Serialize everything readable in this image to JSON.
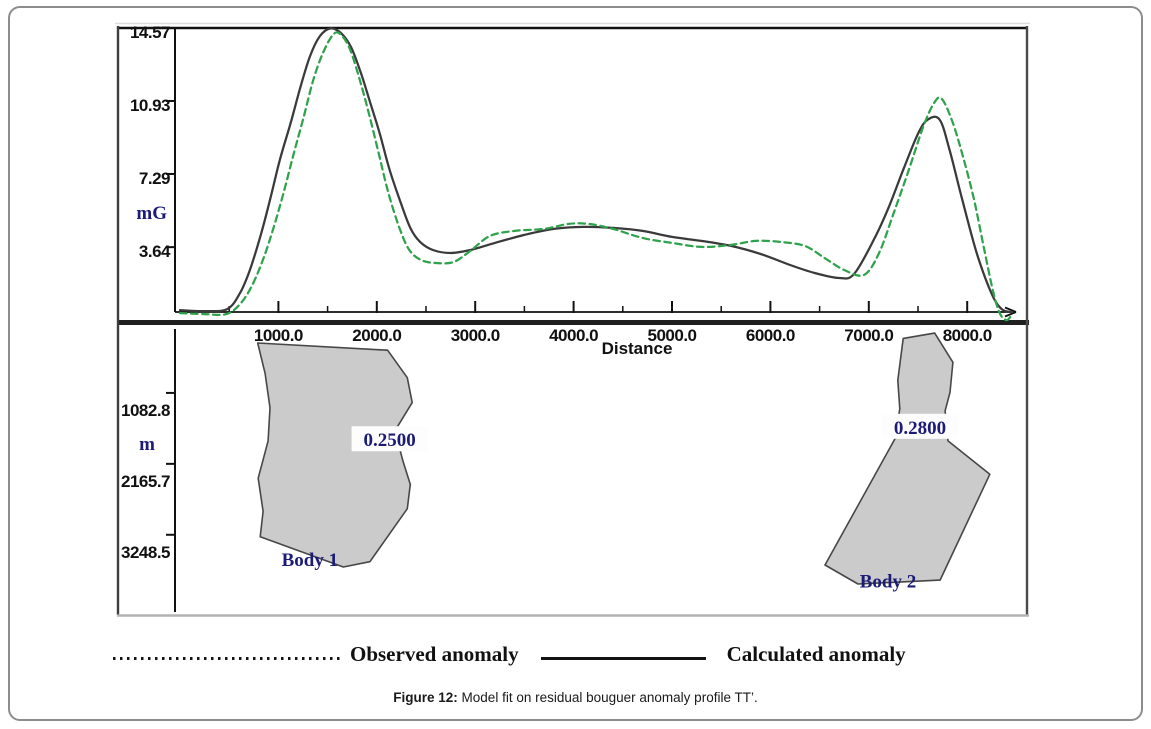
{
  "figure": {
    "caption_label": "Figure 12:",
    "caption_text": " Model fit on residual bouguer anomaly profile TT’."
  },
  "legend": {
    "observed_label": "Observed anomaly",
    "calculated_label": "Calculated anomaly"
  },
  "colors": {
    "observed": "#2fa24c",
    "calculated": "#3a3a3a",
    "body_fill": "#cbcbcb",
    "body_stroke": "#474747",
    "serif_label": "#1c1c78",
    "axis": "#111111",
    "surface_line": "#1f1f1f"
  },
  "chart_data": {
    "type": "line",
    "title": "",
    "top_panel": {
      "ylabel": "mG",
      "ytick_values": [
        3.64,
        7.29,
        10.93,
        14.57
      ],
      "ytick_labels": [
        "3.64",
        "7.29",
        "10.93",
        "14.57"
      ],
      "ylim": [
        0.4,
        14.57
      ],
      "xlabel": "Distance",
      "xtick_values": [
        1000,
        2000,
        3000,
        4000,
        5000,
        6000,
        7000,
        8000
      ],
      "xtick_labels": [
        "1000.0",
        "2000.0",
        "3000.0",
        "4000.0",
        "5000.0",
        "6000.0",
        "7000.0",
        "8000.0"
      ],
      "minor_xtick_step": 500,
      "xlim": [
        0,
        8450
      ],
      "grid": false,
      "series": [
        {
          "name": "Calculated anomaly",
          "style": "solid",
          "color": "#3a3a3a",
          "points": [
            [
              0,
              0.5
            ],
            [
              250,
              0.45
            ],
            [
              480,
              0.55
            ],
            [
              610,
              1.35
            ],
            [
              710,
              2.5
            ],
            [
              815,
              4.15
            ],
            [
              915,
              6.0
            ],
            [
              1015,
              8.0
            ],
            [
              1120,
              9.75
            ],
            [
              1220,
              11.55
            ],
            [
              1320,
              13.15
            ],
            [
              1420,
              14.15
            ],
            [
              1530,
              14.55
            ],
            [
              1640,
              14.3
            ],
            [
              1740,
              13.6
            ],
            [
              1840,
              12.3
            ],
            [
              1930,
              10.9
            ],
            [
              2030,
              9.3
            ],
            [
              2130,
              7.5
            ],
            [
              2240,
              5.9
            ],
            [
              2340,
              4.6
            ],
            [
              2440,
              3.9
            ],
            [
              2570,
              3.5
            ],
            [
              2750,
              3.35
            ],
            [
              2950,
              3.5
            ],
            [
              3200,
              3.85
            ],
            [
              3500,
              4.25
            ],
            [
              3800,
              4.55
            ],
            [
              4100,
              4.65
            ],
            [
              4400,
              4.6
            ],
            [
              4700,
              4.45
            ],
            [
              5000,
              4.15
            ],
            [
              5300,
              3.95
            ],
            [
              5600,
              3.7
            ],
            [
              5900,
              3.3
            ],
            [
              6200,
              2.75
            ],
            [
              6450,
              2.35
            ],
            [
              6700,
              2.1
            ],
            [
              6850,
              2.3
            ],
            [
              7050,
              4.0
            ],
            [
              7200,
              5.6
            ],
            [
              7350,
              7.5
            ],
            [
              7500,
              9.3
            ],
            [
              7600,
              10.0
            ],
            [
              7720,
              10.0
            ],
            [
              7820,
              8.5
            ],
            [
              7950,
              6.0
            ],
            [
              8100,
              3.3
            ],
            [
              8250,
              1.3
            ],
            [
              8350,
              0.55
            ],
            [
              8450,
              0.4
            ]
          ]
        },
        {
          "name": "Observed anomaly",
          "style": "dashed",
          "color": "#2fa24c",
          "points": [
            [
              0,
              0.35
            ],
            [
              250,
              0.3
            ],
            [
              470,
              0.3
            ],
            [
              610,
              0.8
            ],
            [
              730,
              1.7
            ],
            [
              850,
              3.1
            ],
            [
              950,
              4.6
            ],
            [
              1050,
              6.3
            ],
            [
              1150,
              8.2
            ],
            [
              1250,
              10.0
            ],
            [
              1350,
              11.9
            ],
            [
              1450,
              13.3
            ],
            [
              1550,
              14.2
            ],
            [
              1620,
              14.3
            ],
            [
              1720,
              13.6
            ],
            [
              1820,
              12.1
            ],
            [
              1920,
              10.3
            ],
            [
              2020,
              8.3
            ],
            [
              2120,
              6.3
            ],
            [
              2230,
              4.6
            ],
            [
              2330,
              3.5
            ],
            [
              2450,
              3.0
            ],
            [
              2600,
              2.85
            ],
            [
              2780,
              2.9
            ],
            [
              2950,
              3.45
            ],
            [
              3150,
              4.2
            ],
            [
              3400,
              4.45
            ],
            [
              3700,
              4.55
            ],
            [
              3950,
              4.8
            ],
            [
              4150,
              4.8
            ],
            [
              4400,
              4.55
            ],
            [
              4700,
              4.1
            ],
            [
              5000,
              3.85
            ],
            [
              5300,
              3.65
            ],
            [
              5600,
              3.75
            ],
            [
              5850,
              3.95
            ],
            [
              6100,
              3.9
            ],
            [
              6350,
              3.7
            ],
            [
              6550,
              3.1
            ],
            [
              6750,
              2.5
            ],
            [
              6950,
              2.25
            ],
            [
              7100,
              3.3
            ],
            [
              7250,
              5.3
            ],
            [
              7400,
              7.4
            ],
            [
              7550,
              9.6
            ],
            [
              7660,
              10.8
            ],
            [
              7740,
              11.05
            ],
            [
              7850,
              9.9
            ],
            [
              7960,
              8.1
            ],
            [
              8070,
              6.0
            ],
            [
              8170,
              3.6
            ],
            [
              8260,
              1.5
            ],
            [
              8330,
              0.35
            ],
            [
              8400,
              0.0
            ],
            [
              8450,
              0.25
            ]
          ]
        }
      ]
    },
    "bottom_panel": {
      "ylabel": "m",
      "ytick_values": [
        1082.8,
        2165.7,
        3248.5
      ],
      "ytick_labels": [
        "1082.8",
        "2165.7",
        "3248.5"
      ],
      "ylim": [
        0,
        4500
      ],
      "bodies": [
        {
          "name": "Body 1",
          "density_label": "0.2500",
          "label_pos": [
            1320,
            3620
          ],
          "density_pos": [
            2130,
            1790
          ],
          "polygon": [
            [
              790,
              320
            ],
            [
              2110,
              430
            ],
            [
              2310,
              850
            ],
            [
              2360,
              1230
            ],
            [
              2185,
              1660
            ],
            [
              2265,
              2120
            ],
            [
              2340,
              2480
            ],
            [
              2310,
              2850
            ],
            [
              1930,
              3660
            ],
            [
              1660,
              3740
            ],
            [
              815,
              3280
            ],
            [
              845,
              2890
            ],
            [
              795,
              2385
            ],
            [
              895,
              1815
            ],
            [
              915,
              1310
            ],
            [
              865,
              785
            ]
          ]
        },
        {
          "name": "Body 2",
          "density_label": "0.2800",
          "label_pos": [
            7195,
            3950
          ],
          "density_pos": [
            7520,
            1600
          ],
          "polygon": [
            [
              7350,
              250
            ],
            [
              7670,
              170
            ],
            [
              7855,
              615
            ],
            [
              7825,
              1075
            ],
            [
              7775,
              1355
            ],
            [
              7805,
              1815
            ],
            [
              8230,
              2325
            ],
            [
              7725,
              3940
            ],
            [
              6890,
              4000
            ],
            [
              6555,
              3710
            ],
            [
              7265,
              1785
            ],
            [
              7315,
              1325
            ],
            [
              7295,
              890
            ]
          ]
        }
      ]
    }
  }
}
